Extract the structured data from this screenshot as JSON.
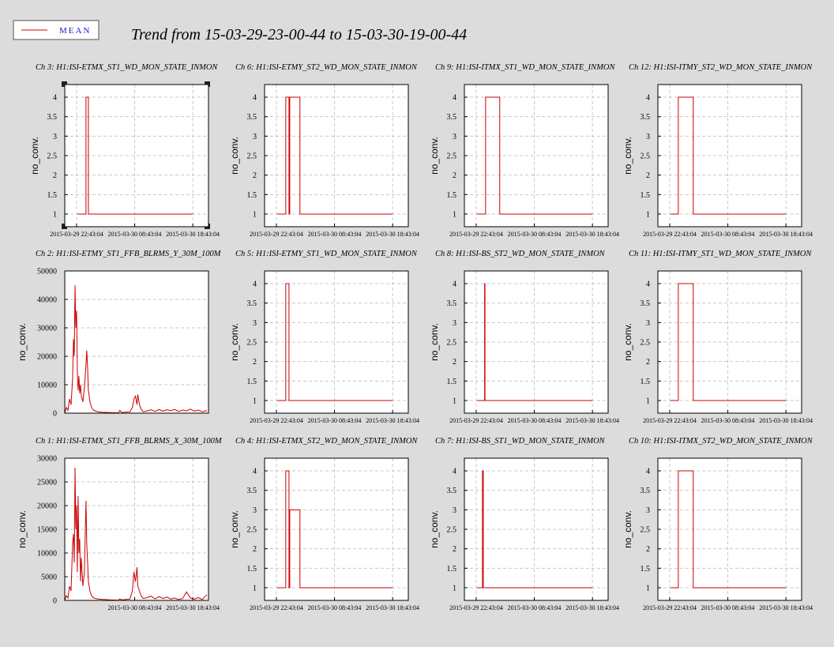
{
  "title": "Trend from 15-03-29-23-00-44 to 15-03-30-19-00-44",
  "legend": {
    "label": "MEAN",
    "color": "#cc0000"
  },
  "chart_data": [
    {
      "type": "line",
      "title": "Ch 3: H1:ISI-ETMX_ST1_WD_MON_STATE_INMON",
      "y_label": "no_conv.",
      "color": "#cc0000",
      "grid": true,
      "x": [
        "2015-03-29 22:51",
        "2015-03-30 00:20",
        "2015-03-30 00:20",
        "2015-03-30 00:45",
        "2015-03-30 00:45",
        "2015-03-30 18:43"
      ],
      "values": [
        1,
        1,
        4,
        4,
        1,
        1
      ],
      "xlim": [
        "2015-03-29 20:41",
        "2015-03-30 21:25"
      ],
      "ylim": [
        0.675,
        4.325
      ],
      "xticks": [
        "2015-03-29 22:43:04",
        "2015-03-30 08:43:04",
        "2015-03-30 18:43:04"
      ],
      "yticks": [
        1,
        1.5,
        2,
        2.5,
        3,
        3.5,
        4
      ]
    },
    {
      "type": "line",
      "title": "Ch 6: H1:ISI-ETMY_ST2_WD_MON_STATE_INMON",
      "y_label": "no_conv.",
      "color": "#cc0000",
      "grid": true,
      "x": [
        "2015-03-29 22:51",
        "2015-03-30 00:20",
        "2015-03-30 00:20",
        "2015-03-30 00:53",
        "2015-03-30 00:53",
        "2015-03-30 01:01",
        "2015-03-30 01:01",
        "2015-03-30 02:46",
        "2015-03-30 02:46",
        "2015-03-30 18:43"
      ],
      "values": [
        1,
        1,
        4,
        4,
        1,
        1,
        4,
        4,
        1,
        1
      ],
      "xlim": [
        "2015-03-29 20:41",
        "2015-03-30 21:25"
      ],
      "ylim": [
        0.675,
        4.325
      ],
      "xticks": [
        "2015-03-29 22:43:04",
        "2015-03-30 08:43:04",
        "2015-03-30 18:43:04"
      ],
      "yticks": [
        1,
        1.5,
        2,
        2.5,
        3,
        3.5,
        4
      ]
    },
    {
      "type": "line",
      "title": "Ch 9: H1:ISI-ITMX_ST1_WD_MON_STATE_INMON",
      "y_label": "no_conv.",
      "color": "#cc0000",
      "grid": true,
      "x": [
        "2015-03-29 22:51",
        "2015-03-30 00:20",
        "2015-03-30 00:20",
        "2015-03-30 02:46",
        "2015-03-30 02:46",
        "2015-03-30 18:43"
      ],
      "values": [
        1,
        1,
        4,
        4,
        1,
        1
      ],
      "xlim": [
        "2015-03-29 20:41",
        "2015-03-30 21:25"
      ],
      "ylim": [
        0.675,
        4.325
      ],
      "xticks": [
        "2015-03-29 22:43:04",
        "2015-03-30 08:43:04",
        "2015-03-30 18:43:04"
      ],
      "yticks": [
        1,
        1.5,
        2,
        2.5,
        3,
        3.5,
        4
      ]
    },
    {
      "type": "line",
      "title": "Ch 12: H1:ISI-ITMY_ST2_WD_MON_STATE_INMON",
      "y_label": "no_conv.",
      "color": "#cc0000",
      "grid": true,
      "x": [
        "2015-03-29 22:51",
        "2015-03-30 00:12",
        "2015-03-30 00:12",
        "2015-03-30 02:46",
        "2015-03-30 02:46",
        "2015-03-30 18:43"
      ],
      "values": [
        1,
        1,
        4,
        4,
        1,
        1
      ],
      "xlim": [
        "2015-03-29 20:41",
        "2015-03-30 21:25"
      ],
      "ylim": [
        0.675,
        4.325
      ],
      "xticks": [
        "2015-03-29 22:43:04",
        "2015-03-30 08:43:04",
        "2015-03-30 18:43:04"
      ],
      "yticks": [
        1,
        1.5,
        2,
        2.5,
        3,
        3.5,
        4
      ]
    },
    {
      "type": "line",
      "title": "Ch 2: H1:ISI-ETMY_ST1_FFB_BLRMS_Y_30M_100M",
      "y_label": "no_conv.",
      "color": "#cc0000",
      "grid": true,
      "x": [
        "2015-03-29 20:41",
        "2015-03-29 20:58",
        "2015-03-29 21:14",
        "2015-03-29 21:30",
        "2015-03-29 21:46",
        "2015-03-29 22:02",
        "2015-03-29 22:11",
        "2015-03-29 22:19",
        "2015-03-29 22:27",
        "2015-03-29 22:35",
        "2015-03-29 22:43",
        "2015-03-29 22:51",
        "2015-03-29 22:59",
        "2015-03-29 23:07",
        "2015-03-29 23:15",
        "2015-03-29 23:24",
        "2015-03-29 23:32",
        "2015-03-29 23:48",
        "2015-03-30 00:04",
        "2015-03-30 00:20",
        "2015-03-30 00:28",
        "2015-03-30 00:37",
        "2015-03-30 00:45",
        "2015-03-30 01:01",
        "2015-03-30 01:17",
        "2015-03-30 01:41",
        "2015-03-30 02:22",
        "2015-03-30 03:11",
        "2015-03-30 04:32",
        "2015-03-30 05:53",
        "2015-03-30 06:09",
        "2015-03-30 06:33",
        "2015-03-30 07:54",
        "2015-03-30 08:19",
        "2015-03-30 08:35",
        "2015-03-30 08:51",
        "2015-03-30 09:07",
        "2015-03-30 09:15",
        "2015-03-30 09:32",
        "2015-03-30 09:48",
        "2015-03-30 10:12",
        "2015-03-30 10:53",
        "2015-03-30 11:33",
        "2015-03-30 12:14",
        "2015-03-30 12:54",
        "2015-03-30 13:35",
        "2015-03-30 14:15",
        "2015-03-30 14:56",
        "2015-03-30 15:36",
        "2015-03-30 16:17",
        "2015-03-30 16:58",
        "2015-03-30 17:38",
        "2015-03-30 18:19",
        "2015-03-30 18:59",
        "2015-03-30 19:40",
        "2015-03-30 20:20",
        "2015-03-30 21:09"
      ],
      "values": [
        0,
        2000,
        1000,
        5000,
        3000,
        12000,
        26000,
        20000,
        45000,
        30000,
        36000,
        15000,
        8000,
        13000,
        7000,
        10000,
        6000,
        4000,
        9000,
        17000,
        22000,
        16000,
        8000,
        4000,
        2000,
        1000,
        500,
        300,
        200,
        100,
        1000,
        200,
        500,
        2000,
        5000,
        6000,
        3000,
        6500,
        3000,
        1500,
        500,
        800,
        1200,
        600,
        1300,
        700,
        1200,
        900,
        1300,
        600,
        1100,
        800,
        1400,
        700,
        1100,
        500,
        900
      ],
      "xlim": [
        "2015-03-29 20:41",
        "2015-03-30 21:25"
      ],
      "ylim": [
        0,
        50000
      ],
      "yticks": [
        0,
        10000,
        20000,
        30000,
        40000,
        50000
      ]
    },
    {
      "type": "line",
      "title": "Ch 5: H1:ISI-ETMY_ST1_WD_MON_STATE_INMON",
      "y_label": "no_conv.",
      "color": "#cc0000",
      "grid": true,
      "x": [
        "2015-03-29 22:51",
        "2015-03-30 00:20",
        "2015-03-30 00:20",
        "2015-03-30 00:53",
        "2015-03-30 00:53",
        "2015-03-30 18:43"
      ],
      "values": [
        1,
        1,
        4,
        4,
        1,
        1
      ],
      "xlim": [
        "2015-03-29 20:41",
        "2015-03-30 21:25"
      ],
      "ylim": [
        0.675,
        4.325
      ],
      "xticks": [
        "2015-03-29 22:43:04",
        "2015-03-30 08:43:04",
        "2015-03-30 18:43:04"
      ],
      "yticks": [
        1,
        1.5,
        2,
        2.5,
        3,
        3.5,
        4
      ]
    },
    {
      "type": "line",
      "title": "Ch 8: H1:ISI-BS_ST2_WD_MON_STATE_INMON",
      "y_label": "no_conv.",
      "color": "#cc0000",
      "grid": true,
      "x": [
        "2015-03-29 22:51",
        "2015-03-30 00:10",
        "2015-03-30 00:10",
        "2015-03-30 00:14",
        "2015-03-30 00:14",
        "2015-03-30 18:43"
      ],
      "values": [
        1,
        1,
        4,
        4,
        1,
        1
      ],
      "xlim": [
        "2015-03-29 20:41",
        "2015-03-30 21:25"
      ],
      "ylim": [
        0.675,
        4.325
      ],
      "xticks": [
        "2015-03-29 22:43:04",
        "2015-03-30 08:43:04",
        "2015-03-30 18:43:04"
      ],
      "yticks": [
        1,
        1.5,
        2,
        2.5,
        3,
        3.5,
        4
      ]
    },
    {
      "type": "line",
      "title": "Ch 11: H1:ISI-ITMY_ST1_WD_MON_STATE_INMON",
      "y_label": "no_conv.",
      "color": "#cc0000",
      "grid": true,
      "x": [
        "2015-03-29 22:51",
        "2015-03-30 00:12",
        "2015-03-30 00:12",
        "2015-03-30 02:46",
        "2015-03-30 02:46",
        "2015-03-30 18:43"
      ],
      "values": [
        1,
        1,
        4,
        4,
        1,
        1
      ],
      "xlim": [
        "2015-03-29 20:41",
        "2015-03-30 21:25"
      ],
      "ylim": [
        0.675,
        4.325
      ],
      "xticks": [
        "2015-03-29 22:43:04",
        "2015-03-30 08:43:04",
        "2015-03-30 18:43:04"
      ],
      "yticks": [
        1,
        1.5,
        2,
        2.5,
        3,
        3.5,
        4
      ]
    },
    {
      "type": "line",
      "title": "Ch 1: H1:ISI-ETMX_ST1_FFB_BLRMS_X_30M_100M",
      "y_label": "no_conv.",
      "color": "#cc0000",
      "grid": true,
      "x": [
        "2015-03-29 20:41",
        "2015-03-29 20:58",
        "2015-03-29 21:14",
        "2015-03-29 21:30",
        "2015-03-29 21:46",
        "2015-03-29 22:02",
        "2015-03-29 22:11",
        "2015-03-29 22:19",
        "2015-03-29 22:27",
        "2015-03-29 22:35",
        "2015-03-29 22:43",
        "2015-03-29 22:51",
        "2015-03-29 22:59",
        "2015-03-29 23:07",
        "2015-03-29 23:15",
        "2015-03-29 23:24",
        "2015-03-29 23:32",
        "2015-03-29 23:48",
        "2015-03-30 00:04",
        "2015-03-30 00:20",
        "2015-03-30 00:28",
        "2015-03-30 00:37",
        "2015-03-30 00:45",
        "2015-03-30 01:01",
        "2015-03-30 01:17",
        "2015-03-30 01:41",
        "2015-03-30 02:22",
        "2015-03-30 03:11",
        "2015-03-30 04:32",
        "2015-03-30 05:53",
        "2015-03-30 06:09",
        "2015-03-30 06:33",
        "2015-03-30 07:54",
        "2015-03-30 08:19",
        "2015-03-30 08:35",
        "2015-03-30 08:51",
        "2015-03-30 09:07",
        "2015-03-30 09:15",
        "2015-03-30 09:32",
        "2015-03-30 09:48",
        "2015-03-30 10:12",
        "2015-03-30 10:53",
        "2015-03-30 11:33",
        "2015-03-30 12:14",
        "2015-03-30 12:54",
        "2015-03-30 13:35",
        "2015-03-30 14:15",
        "2015-03-30 14:56",
        "2015-03-30 15:36",
        "2015-03-30 16:17",
        "2015-03-30 16:58",
        "2015-03-30 17:38",
        "2015-03-30 18:19",
        "2015-03-30 18:59",
        "2015-03-30 19:40",
        "2015-03-30 20:20",
        "2015-03-30 21:09"
      ],
      "values": [
        0,
        1000,
        500,
        3000,
        2000,
        12000,
        14000,
        8000,
        28000,
        15000,
        20000,
        6000,
        22000,
        10000,
        13000,
        4000,
        9000,
        3000,
        6000,
        21000,
        12000,
        8000,
        4000,
        2000,
        1000,
        500,
        300,
        200,
        100,
        50,
        300,
        100,
        300,
        2000,
        6000,
        4000,
        7000,
        3000,
        2000,
        1000,
        400,
        600,
        900,
        300,
        800,
        400,
        700,
        300,
        500,
        200,
        400,
        1800,
        500,
        300,
        600,
        200,
        1200
      ],
      "xlim": [
        "2015-03-29 20:41",
        "2015-03-30 21:25"
      ],
      "ylim": [
        0,
        30000
      ],
      "xticks": [
        "2015-03-30 08:43:04",
        "2015-03-30 18:43:04"
      ],
      "yticks": [
        0,
        5000,
        10000,
        15000,
        20000,
        25000,
        30000
      ]
    },
    {
      "type": "line",
      "title": "Ch 4: H1:ISI-ETMX_ST2_WD_MON_STATE_INMON",
      "y_label": "no_conv.",
      "color": "#cc0000",
      "grid": true,
      "x": [
        "2015-03-29 22:51",
        "2015-03-30 00:20",
        "2015-03-30 00:20",
        "2015-03-30 00:53",
        "2015-03-30 00:53",
        "2015-03-30 01:01",
        "2015-03-30 01:01",
        "2015-03-30 02:46",
        "2015-03-30 02:46",
        "2015-03-30 18:43"
      ],
      "values": [
        1,
        1,
        4,
        4,
        1,
        1,
        3,
        3,
        1,
        1
      ],
      "xlim": [
        "2015-03-29 20:41",
        "2015-03-30 21:25"
      ],
      "ylim": [
        0.675,
        4.325
      ],
      "xticks": [
        "2015-03-29 22:43:04",
        "2015-03-30 08:43:04",
        "2015-03-30 18:43:04"
      ],
      "yticks": [
        1,
        1.5,
        2,
        2.5,
        3,
        3.5,
        4
      ]
    },
    {
      "type": "line",
      "title": "Ch 7: H1:ISI-BS_ST1_WD_MON_STATE_INMON",
      "y_label": "no_conv.",
      "color": "#cc0000",
      "grid": true,
      "x": [
        "2015-03-29 22:51",
        "2015-03-29 23:48",
        "2015-03-29 23:48",
        "2015-03-29 23:56",
        "2015-03-29 23:56",
        "2015-03-30 18:43"
      ],
      "values": [
        1,
        1,
        4,
        4,
        1,
        1
      ],
      "xlim": [
        "2015-03-29 20:41",
        "2015-03-30 21:25"
      ],
      "ylim": [
        0.675,
        4.325
      ],
      "xticks": [
        "2015-03-29 22:43:04",
        "2015-03-30 08:43:04",
        "2015-03-30 18:43:04"
      ],
      "yticks": [
        1,
        1.5,
        2,
        2.5,
        3,
        3.5,
        4
      ]
    },
    {
      "type": "line",
      "title": "Ch 10: H1:ISI-ITMX_ST2_WD_MON_STATE_INMON",
      "y_label": "no_conv.",
      "color": "#cc0000",
      "grid": true,
      "x": [
        "2015-03-29 22:51",
        "2015-03-30 00:12",
        "2015-03-30 00:12",
        "2015-03-30 02:46",
        "2015-03-30 02:46",
        "2015-03-30 18:43"
      ],
      "values": [
        1,
        1,
        4,
        4,
        1,
        1
      ],
      "xlim": [
        "2015-03-29 20:41",
        "2015-03-30 21:25"
      ],
      "ylim": [
        0.675,
        4.325
      ],
      "xticks": [
        "2015-03-29 22:43:04",
        "2015-03-30 08:43:04",
        "2015-03-30 18:43:04"
      ],
      "yticks": [
        1,
        1.5,
        2,
        2.5,
        3,
        3.5,
        4
      ]
    }
  ]
}
